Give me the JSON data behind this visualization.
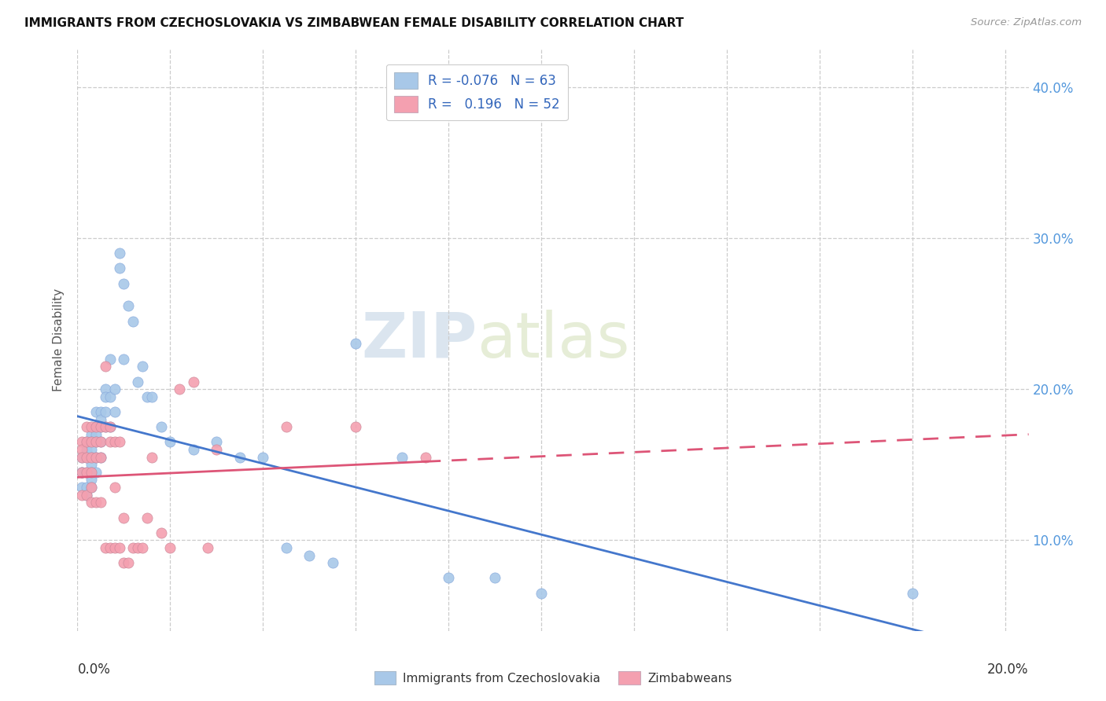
{
  "title": "IMMIGRANTS FROM CZECHOSLOVAKIA VS ZIMBABWEAN FEMALE DISABILITY CORRELATION CHART",
  "source": "Source: ZipAtlas.com",
  "ylabel": "Female Disability",
  "ytick_vals": [
    0.1,
    0.2,
    0.3,
    0.4
  ],
  "xlim": [
    0.0,
    0.205
  ],
  "ylim": [
    0.04,
    0.425
  ],
  "color_blue": "#A8C8E8",
  "color_pink": "#F4A0B0",
  "line_blue": "#4477CC",
  "line_pink": "#DD5577",
  "watermark_zip": "ZIP",
  "watermark_atlas": "atlas",
  "blue_x": [
    0.001,
    0.001,
    0.001,
    0.001,
    0.002,
    0.002,
    0.002,
    0.002,
    0.002,
    0.002,
    0.003,
    0.003,
    0.003,
    0.003,
    0.003,
    0.003,
    0.003,
    0.003,
    0.004,
    0.004,
    0.004,
    0.004,
    0.004,
    0.004,
    0.005,
    0.005,
    0.005,
    0.005,
    0.005,
    0.006,
    0.006,
    0.006,
    0.006,
    0.007,
    0.007,
    0.007,
    0.008,
    0.008,
    0.009,
    0.009,
    0.01,
    0.01,
    0.011,
    0.012,
    0.013,
    0.014,
    0.015,
    0.016,
    0.018,
    0.02,
    0.025,
    0.03,
    0.035,
    0.04,
    0.045,
    0.05,
    0.055,
    0.06,
    0.07,
    0.08,
    0.09,
    0.1,
    0.18
  ],
  "blue_y": [
    0.155,
    0.145,
    0.145,
    0.135,
    0.165,
    0.16,
    0.155,
    0.145,
    0.135,
    0.13,
    0.17,
    0.165,
    0.16,
    0.155,
    0.15,
    0.145,
    0.14,
    0.135,
    0.185,
    0.175,
    0.17,
    0.165,
    0.155,
    0.145,
    0.185,
    0.18,
    0.175,
    0.165,
    0.155,
    0.2,
    0.195,
    0.185,
    0.175,
    0.22,
    0.195,
    0.175,
    0.2,
    0.185,
    0.29,
    0.28,
    0.27,
    0.22,
    0.255,
    0.245,
    0.205,
    0.215,
    0.195,
    0.195,
    0.175,
    0.165,
    0.16,
    0.165,
    0.155,
    0.155,
    0.095,
    0.09,
    0.085,
    0.23,
    0.155,
    0.075,
    0.075,
    0.065,
    0.065
  ],
  "pink_x": [
    0.001,
    0.001,
    0.001,
    0.001,
    0.001,
    0.002,
    0.002,
    0.002,
    0.002,
    0.002,
    0.003,
    0.003,
    0.003,
    0.003,
    0.003,
    0.003,
    0.004,
    0.004,
    0.004,
    0.004,
    0.005,
    0.005,
    0.005,
    0.005,
    0.006,
    0.006,
    0.006,
    0.007,
    0.007,
    0.007,
    0.008,
    0.008,
    0.008,
    0.009,
    0.009,
    0.01,
    0.01,
    0.011,
    0.012,
    0.013,
    0.014,
    0.015,
    0.016,
    0.018,
    0.02,
    0.022,
    0.025,
    0.028,
    0.03,
    0.045,
    0.06,
    0.075
  ],
  "pink_y": [
    0.165,
    0.16,
    0.155,
    0.145,
    0.13,
    0.175,
    0.165,
    0.155,
    0.145,
    0.13,
    0.175,
    0.165,
    0.155,
    0.145,
    0.135,
    0.125,
    0.175,
    0.165,
    0.155,
    0.125,
    0.175,
    0.165,
    0.155,
    0.125,
    0.215,
    0.175,
    0.095,
    0.175,
    0.165,
    0.095,
    0.165,
    0.135,
    0.095,
    0.165,
    0.095,
    0.115,
    0.085,
    0.085,
    0.095,
    0.095,
    0.095,
    0.115,
    0.155,
    0.105,
    0.095,
    0.2,
    0.205,
    0.095,
    0.16,
    0.175,
    0.175,
    0.155
  ]
}
